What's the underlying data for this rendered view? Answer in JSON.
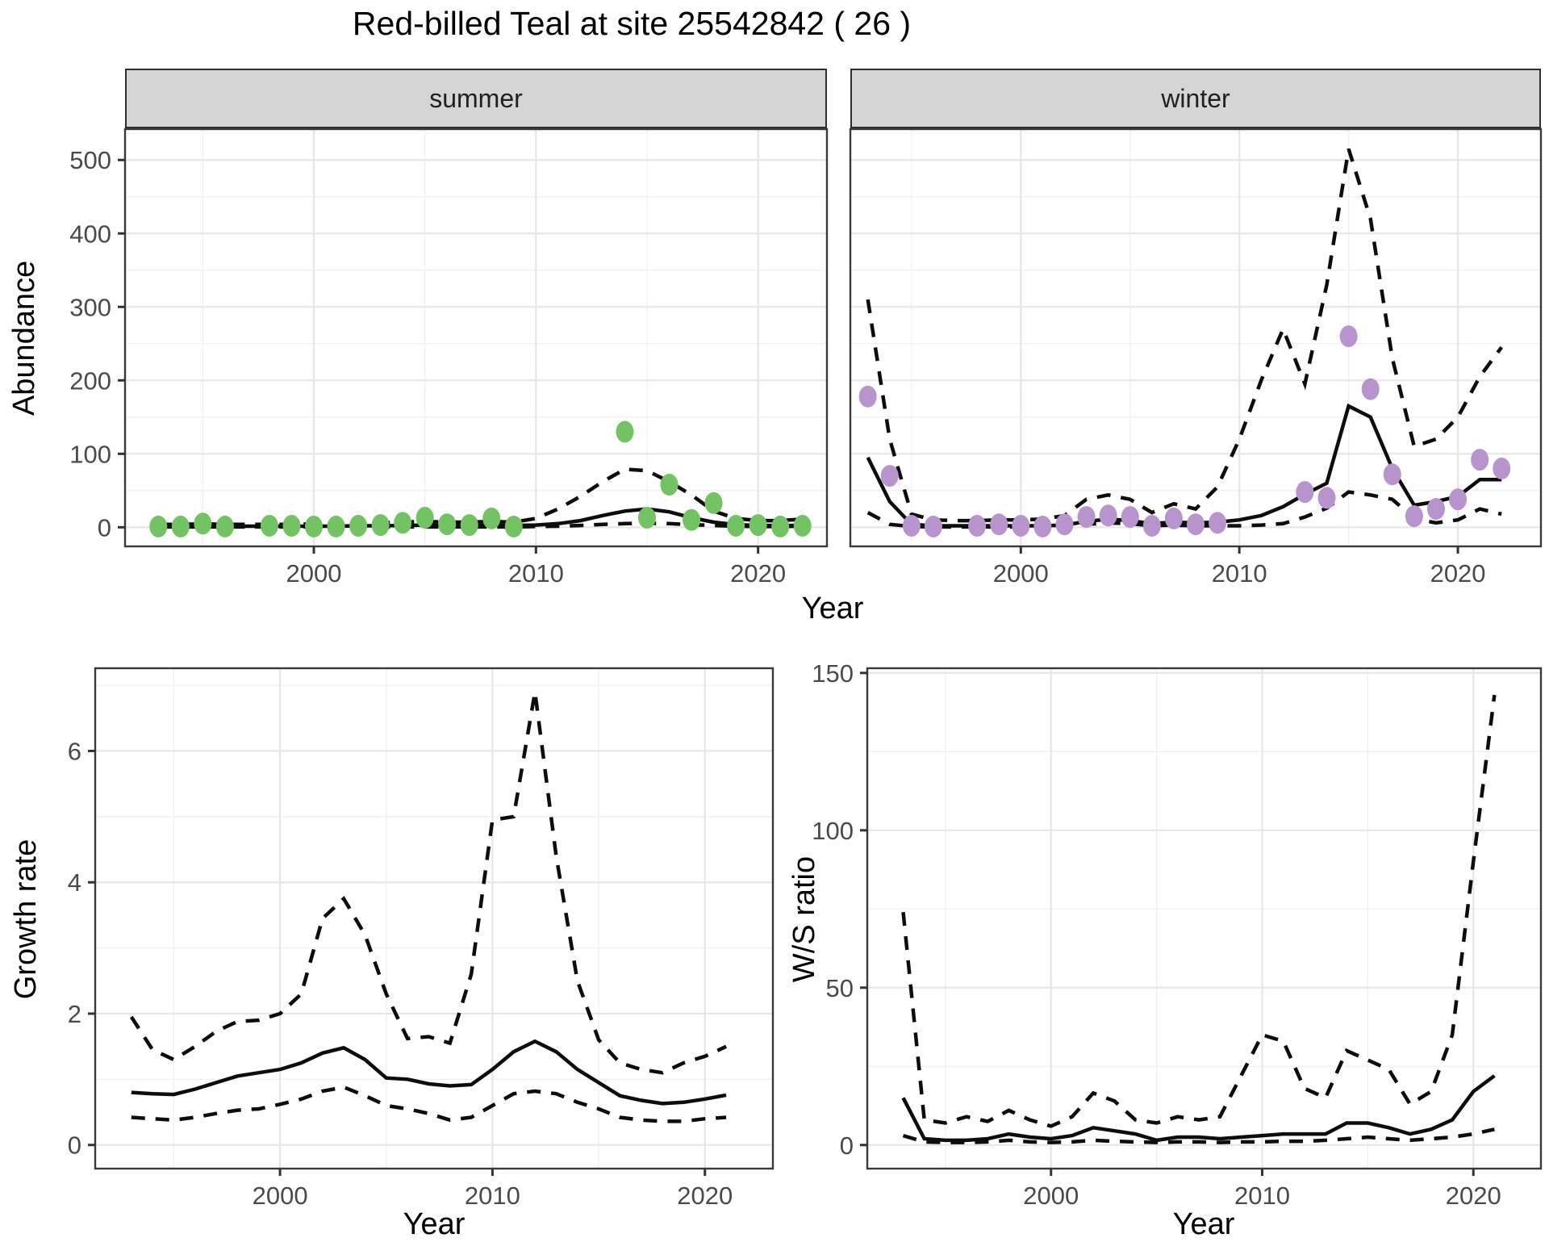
{
  "title": "Red-billed Teal at site 25542842 ( 26 )",
  "facets": {
    "summer": "summer",
    "winter": "winter"
  },
  "axes": {
    "abundance_label": "Abundance",
    "year_label": "Year",
    "growth_label": "Growth rate",
    "ws_label": "W/S ratio"
  },
  "colors": {
    "point_green": "#73c263",
    "point_purple": "#b794cc",
    "line": "#0d0d0d",
    "grid_major": "#e6e6e6",
    "grid_minor": "#f1f1f1",
    "panel_border": "#3a3a3a",
    "strip_fill": "#d5d5d5",
    "strip_border": "#2e2e2e",
    "tick_text": "#4a4a4a",
    "tick_mark": "#333333"
  },
  "chart_data": [
    {
      "id": "abundance_summer",
      "type": "scatter",
      "facet_label": "summer",
      "xlabel": "Year",
      "ylabel": "Abundance",
      "xlim": [
        1991.5,
        2023.1
      ],
      "ylim": [
        -26,
        542
      ],
      "xticks": [
        2000,
        2010,
        2020
      ],
      "yticks": [
        0,
        100,
        200,
        300,
        400,
        500
      ],
      "xminor": [
        1995,
        2005,
        2015
      ],
      "yminor": [
        50,
        150,
        250,
        350,
        450
      ],
      "grid": true,
      "legend": "none",
      "points": {
        "color": "#73c263",
        "x": [
          1993,
          1994,
          1995,
          1996,
          1998,
          1999,
          2000,
          2001,
          2002,
          2003,
          2004,
          2005,
          2006,
          2007,
          2008,
          2009,
          2014,
          2015,
          2016,
          2017,
          2018,
          2019,
          2020,
          2021,
          2022
        ],
        "y": [
          1,
          1,
          5,
          1,
          2,
          2,
          1,
          1,
          2,
          3,
          6,
          13,
          4,
          3,
          12,
          1,
          130,
          13,
          58,
          10,
          33,
          2,
          3,
          1,
          2
        ]
      },
      "median_line": {
        "x": [
          1993,
          1994,
          1995,
          1996,
          1997,
          1998,
          1999,
          2000,
          2001,
          2002,
          2003,
          2004,
          2005,
          2006,
          2007,
          2008,
          2009,
          2010,
          2011,
          2012,
          2013,
          2014,
          2015,
          2016,
          2017,
          2018,
          2019,
          2020,
          2021,
          2022
        ],
        "y": [
          1.5,
          1.5,
          1.5,
          1.5,
          1.5,
          1.5,
          1.5,
          1.5,
          1.5,
          2,
          2,
          2.5,
          3,
          2.5,
          2.5,
          3,
          2.5,
          3,
          5,
          9,
          16,
          22,
          25,
          21,
          13,
          7,
          3.5,
          2.5,
          2.5,
          2.5
        ]
      },
      "upper_ci": {
        "x": [
          1993,
          1994,
          1995,
          1996,
          1997,
          1998,
          1999,
          2000,
          2001,
          2002,
          2003,
          2004,
          2005,
          2006,
          2007,
          2008,
          2009,
          2010,
          2011,
          2012,
          2013,
          2014,
          2015,
          2016,
          2017,
          2018,
          2019,
          2020,
          2021,
          2022
        ],
        "y": [
          4,
          4,
          4.5,
          4,
          4,
          4,
          4,
          4.5,
          5,
          5.5,
          6,
          7,
          8,
          7,
          7,
          8,
          7,
          12,
          25,
          42,
          62,
          79,
          77,
          62,
          44,
          22,
          12,
          9,
          9,
          11
        ]
      },
      "lower_ci": {
        "x": [
          1993,
          1994,
          1995,
          1996,
          1997,
          1998,
          1999,
          2000,
          2001,
          2002,
          2003,
          2004,
          2005,
          2006,
          2007,
          2008,
          2009,
          2010,
          2011,
          2012,
          2013,
          2014,
          2015,
          2016,
          2017,
          2018,
          2019,
          2020,
          2021,
          2022
        ],
        "y": [
          0.5,
          0.5,
          0.5,
          0.5,
          0.5,
          0.5,
          0.5,
          0.5,
          0.5,
          0.5,
          0.5,
          0.5,
          0.5,
          0.5,
          0.5,
          0.5,
          0.5,
          1,
          1.5,
          2.5,
          4,
          5,
          5.5,
          5,
          3.5,
          2.5,
          1.5,
          1,
          1,
          1.5
        ]
      }
    },
    {
      "id": "abundance_winter",
      "type": "scatter",
      "facet_label": "winter",
      "xlabel": "Year",
      "ylabel": "Abundance",
      "xlim": [
        1992.2,
        2023.8
      ],
      "ylim": [
        -26,
        542
      ],
      "xticks": [
        2000,
        2010,
        2020
      ],
      "yticks": [
        0,
        100,
        200,
        300,
        400,
        500
      ],
      "xminor": [
        1995,
        2005,
        2015
      ],
      "yminor": [
        50,
        150,
        250,
        350,
        450
      ],
      "grid": true,
      "legend": "none",
      "points": {
        "color": "#b794cc",
        "x": [
          1993,
          1994,
          1995,
          1996,
          1998,
          1999,
          2000,
          2001,
          2002,
          2003,
          2004,
          2005,
          2006,
          2007,
          2008,
          2009,
          2013,
          2014,
          2015,
          2016,
          2017,
          2018,
          2019,
          2020,
          2021,
          2022
        ],
        "y": [
          178,
          70,
          2,
          1,
          2,
          4,
          2,
          1,
          4,
          14,
          16,
          14,
          2,
          12,
          4,
          6,
          48,
          40,
          260,
          188,
          72,
          15,
          25,
          38,
          92,
          80
        ]
      },
      "median_line": {
        "x": [
          1993,
          1994,
          1995,
          1996,
          1997,
          1998,
          1999,
          2000,
          2001,
          2002,
          2003,
          2004,
          2005,
          2006,
          2007,
          2008,
          2009,
          2010,
          2011,
          2012,
          2013,
          2014,
          2015,
          2016,
          2017,
          2018,
          2019,
          2020,
          2021,
          2022
        ],
        "y": [
          95,
          35,
          4,
          2,
          2,
          2,
          2,
          2,
          2,
          3,
          8,
          11,
          9,
          5,
          7,
          6,
          7,
          10,
          16,
          28,
          45,
          60,
          165,
          150,
          80,
          30,
          35,
          42,
          65,
          65
        ]
      },
      "upper_ci": {
        "x": [
          1993,
          1994,
          1995,
          1996,
          1997,
          1998,
          1999,
          2000,
          2001,
          2002,
          2003,
          2004,
          2005,
          2006,
          2007,
          2008,
          2009,
          2010,
          2011,
          2012,
          2013,
          2014,
          2015,
          2016,
          2017,
          2018,
          2019,
          2020,
          2021,
          2022
        ],
        "y": [
          310,
          120,
          18,
          10,
          9,
          9,
          10,
          10,
          11,
          16,
          38,
          44,
          38,
          20,
          32,
          25,
          55,
          120,
          200,
          270,
          195,
          330,
          515,
          420,
          230,
          110,
          120,
          150,
          205,
          245
        ]
      },
      "lower_ci": {
        "x": [
          1993,
          1994,
          1995,
          1996,
          1997,
          1998,
          1999,
          2000,
          2001,
          2002,
          2003,
          2004,
          2005,
          2006,
          2007,
          2008,
          2009,
          2010,
          2011,
          2012,
          2013,
          2014,
          2015,
          2016,
          2017,
          2018,
          2019,
          2020,
          2021,
          2022
        ],
        "y": [
          20,
          4,
          1,
          0.5,
          0.5,
          0.5,
          0.5,
          0.5,
          0.5,
          1,
          4,
          6,
          5,
          2,
          3,
          2,
          2,
          2,
          3,
          5,
          14,
          26,
          48,
          44,
          38,
          12,
          6,
          10,
          25,
          18
        ]
      }
    },
    {
      "id": "growth_rate",
      "type": "line",
      "facet_label": "",
      "xlabel": "Year",
      "ylabel": "Growth rate",
      "xlim": [
        1991.3,
        2023.2
      ],
      "ylim": [
        -0.36,
        7.26
      ],
      "xticks": [
        2000,
        2010,
        2020
      ],
      "yticks": [
        0,
        2,
        4,
        6
      ],
      "xminor": [
        1995,
        2005,
        2015
      ],
      "yminor": [
        1,
        3,
        5,
        7
      ],
      "grid": true,
      "legend": "none",
      "median_line": {
        "x": [
          1993,
          1994,
          1995,
          1996,
          1997,
          1998,
          1999,
          2000,
          2001,
          2002,
          2003,
          2004,
          2005,
          2006,
          2007,
          2008,
          2009,
          2010,
          2011,
          2012,
          2013,
          2014,
          2015,
          2016,
          2017,
          2018,
          2019,
          2020,
          2021
        ],
        "y": [
          0.8,
          0.78,
          0.77,
          0.85,
          0.95,
          1.05,
          1.1,
          1.15,
          1.25,
          1.4,
          1.48,
          1.3,
          1.02,
          1.0,
          0.93,
          0.9,
          0.92,
          1.15,
          1.42,
          1.58,
          1.42,
          1.15,
          0.95,
          0.75,
          0.68,
          0.63,
          0.65,
          0.7,
          0.76
        ]
      },
      "upper_ci": {
        "x": [
          1993,
          1994,
          1995,
          1996,
          1997,
          1998,
          1999,
          2000,
          2001,
          2002,
          2003,
          2004,
          2005,
          2006,
          2007,
          2008,
          2009,
          2010,
          2011,
          2012,
          2013,
          2014,
          2015,
          2016,
          2017,
          2018,
          2019,
          2020,
          2021
        ],
        "y": [
          1.95,
          1.45,
          1.3,
          1.5,
          1.73,
          1.88,
          1.9,
          2.0,
          2.3,
          3.45,
          3.75,
          3.2,
          2.3,
          1.62,
          1.65,
          1.55,
          2.6,
          4.95,
          5.0,
          6.9,
          4.4,
          2.5,
          1.6,
          1.25,
          1.15,
          1.1,
          1.25,
          1.35,
          1.5
        ]
      },
      "lower_ci": {
        "x": [
          1993,
          1994,
          1995,
          1996,
          1997,
          1998,
          1999,
          2000,
          2001,
          2002,
          2003,
          2004,
          2005,
          2006,
          2007,
          2008,
          2009,
          2010,
          2011,
          2012,
          2013,
          2014,
          2015,
          2016,
          2017,
          2018,
          2019,
          2020,
          2021
        ],
        "y": [
          0.42,
          0.4,
          0.38,
          0.42,
          0.48,
          0.53,
          0.55,
          0.62,
          0.7,
          0.82,
          0.88,
          0.75,
          0.6,
          0.55,
          0.48,
          0.38,
          0.42,
          0.6,
          0.78,
          0.82,
          0.78,
          0.65,
          0.55,
          0.42,
          0.38,
          0.36,
          0.36,
          0.4,
          0.42
        ]
      }
    },
    {
      "id": "ws_ratio",
      "type": "line",
      "facet_label": "",
      "xlabel": "Year",
      "ylabel": "W/S ratio",
      "xlim": [
        1991.3,
        2023.2
      ],
      "ylim": [
        -7.5,
        151.5
      ],
      "xticks": [
        2000,
        2010,
        2020
      ],
      "yticks": [
        0,
        50,
        100,
        150
      ],
      "xminor": [
        1995,
        2005,
        2015
      ],
      "yminor": [
        25,
        75,
        125
      ],
      "grid": true,
      "legend": "none",
      "median_line": {
        "x": [
          1993,
          1994,
          1995,
          1996,
          1997,
          1998,
          1999,
          2000,
          2001,
          2002,
          2003,
          2004,
          2005,
          2006,
          2007,
          2008,
          2009,
          2010,
          2011,
          2012,
          2013,
          2014,
          2015,
          2016,
          2017,
          2018,
          2019,
          2020,
          2021
        ],
        "y": [
          15,
          2,
          1.5,
          1.5,
          2,
          3.5,
          2.5,
          2,
          3,
          5.5,
          4.5,
          3.5,
          1.5,
          2.5,
          2.5,
          2,
          2.5,
          3,
          3.5,
          3.5,
          3.5,
          7,
          7,
          5.5,
          3.5,
          5,
          8,
          17,
          22
        ]
      },
      "upper_ci": {
        "x": [
          1993,
          1994,
          1995,
          1996,
          1997,
          1998,
          1999,
          2000,
          2001,
          2002,
          2003,
          2004,
          2005,
          2006,
          2007,
          2008,
          2009,
          2010,
          2011,
          2012,
          2013,
          2014,
          2015,
          2016,
          2017,
          2018,
          2019,
          2020,
          2021
        ],
        "y": [
          74,
          8,
          7,
          9,
          7.5,
          11,
          8,
          6,
          9,
          16.5,
          14,
          8,
          7,
          9,
          8,
          9,
          22,
          35,
          33,
          18,
          15,
          30,
          27,
          24,
          13,
          17,
          35,
          90,
          143
        ]
      },
      "lower_ci": {
        "x": [
          1993,
          1994,
          1995,
          1996,
          1997,
          1998,
          1999,
          2000,
          2001,
          2002,
          2003,
          2004,
          2005,
          2006,
          2007,
          2008,
          2009,
          2010,
          2011,
          2012,
          2013,
          2014,
          2015,
          2016,
          2017,
          2018,
          2019,
          2020,
          2021
        ],
        "y": [
          3,
          1,
          0.8,
          0.8,
          1,
          1.5,
          1,
          0.8,
          1,
          1.5,
          1.2,
          1,
          0.8,
          1,
          1,
          0.8,
          1,
          1,
          1.2,
          1.2,
          1.5,
          2,
          2.5,
          2,
          1.5,
          2,
          2.5,
          3.5,
          5
        ]
      }
    }
  ]
}
